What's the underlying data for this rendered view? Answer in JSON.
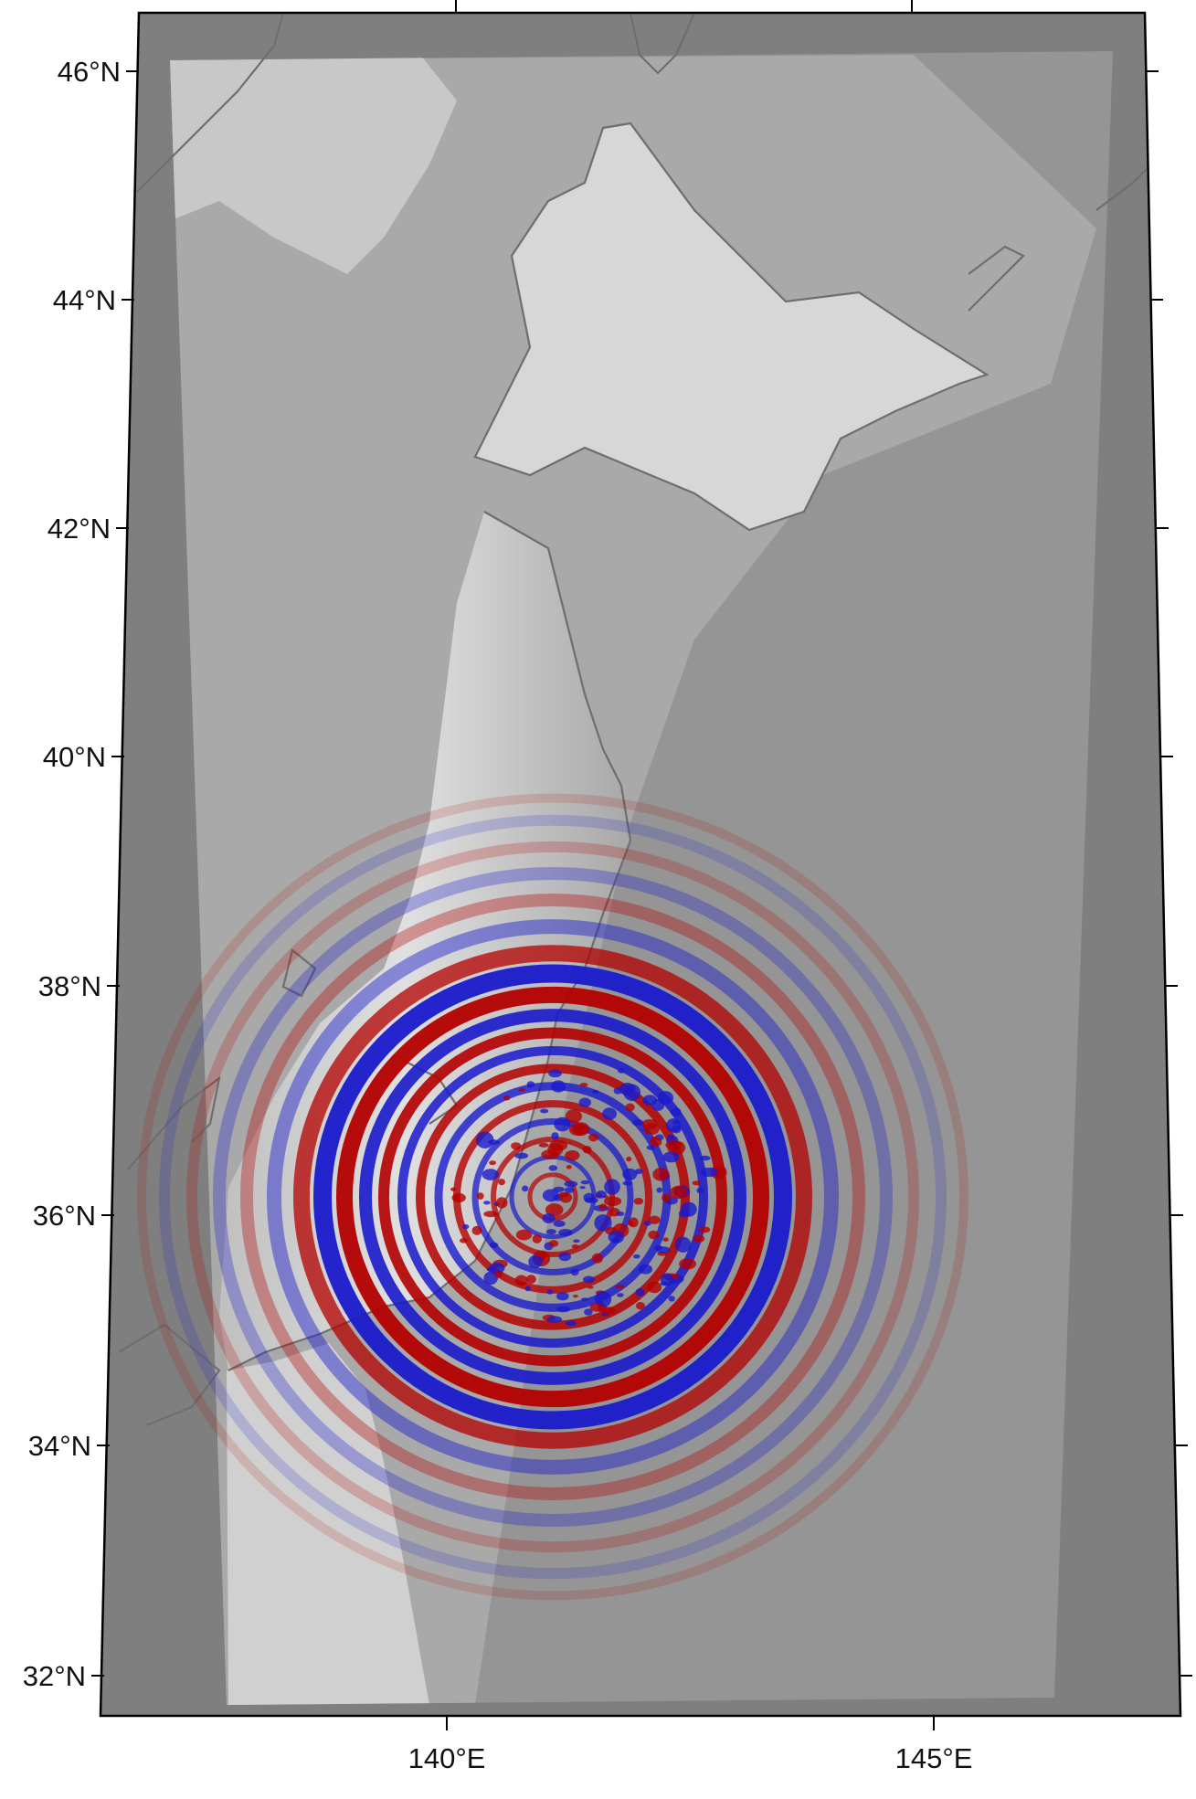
{
  "map": {
    "latitude_labels": [
      "46°N",
      "44°N",
      "42°N",
      "40°N",
      "38°N",
      "36°N",
      "34°N",
      "32°N"
    ],
    "longitude_labels": [
      "140°E",
      "145°E"
    ],
    "colors": {
      "frame_background": "#7f7f7f",
      "deep_sea": "#959595",
      "land_high": "#f2f2f2",
      "coastline": "#6e6e6e",
      "wave_positive": "#b40000",
      "wave_negative": "#1a1acc"
    },
    "wavefield": {
      "description_source": "seismic wavefield overlay",
      "positive_color_name": "red",
      "negative_color_name": "blue"
    }
  }
}
